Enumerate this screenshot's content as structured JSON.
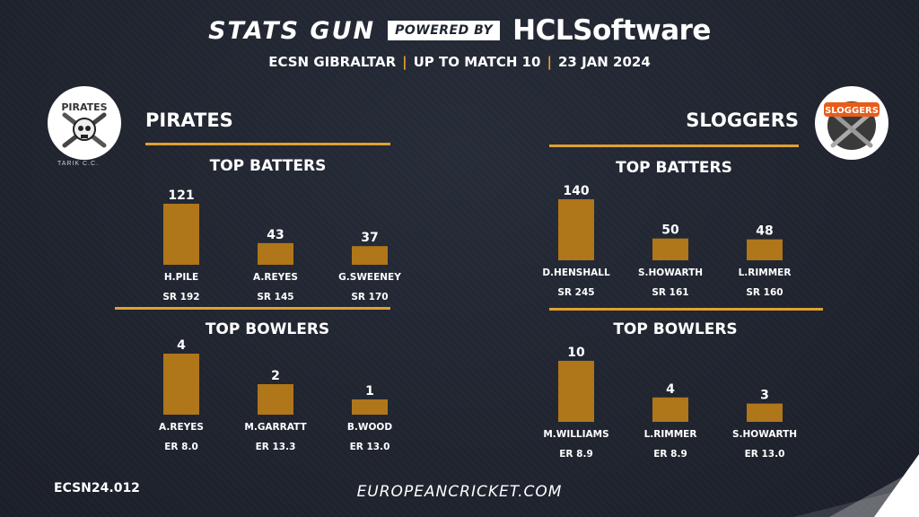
{
  "header": {
    "brand": "STATS GUN",
    "powered_by": "POWERED BY",
    "sponsor": "HCLSoftware",
    "league": "ECSN GIBRALTAR",
    "upto": "UP TO MATCH 10",
    "date": "23 JAN 2024",
    "separator": "|"
  },
  "left_team": {
    "name": "PIRATES",
    "logo_icon": "pirates-skull-logo",
    "logo_text": "PIRATES",
    "logo_caption": "TARIK C.C."
  },
  "right_team": {
    "name": "SLOGGERS",
    "logo_icon": "sloggers-logo",
    "logo_text": "SLOGGERS"
  },
  "section_titles": {
    "batters": "TOP BATTERS",
    "bowlers": "TOP BOWLERS"
  },
  "colors": {
    "bar": "#b0761a",
    "accent": "#e0a030",
    "background": "#1f2430"
  },
  "chart_data": [
    {
      "type": "bar",
      "title": "TOP BATTERS",
      "team": "PIRATES",
      "categories": [
        "H.PILE",
        "A.REYES",
        "G.SWEENEY"
      ],
      "values": [
        121,
        43,
        37
      ],
      "sub_labels": [
        "SR 192",
        "SR 145",
        "SR 170"
      ],
      "ylim": [
        0,
        121
      ]
    },
    {
      "type": "bar",
      "title": "TOP BOWLERS",
      "team": "PIRATES",
      "categories": [
        "A.REYES",
        "M.GARRATT",
        "B.WOOD"
      ],
      "values": [
        4,
        2,
        1
      ],
      "sub_labels": [
        "ER 8.0",
        "ER 13.3",
        "ER 13.0"
      ],
      "ylim": [
        0,
        4
      ]
    },
    {
      "type": "bar",
      "title": "TOP BATTERS",
      "team": "SLOGGERS",
      "categories": [
        "D.HENSHALL",
        "S.HOWARTH",
        "L.RIMMER"
      ],
      "values": [
        140,
        50,
        48
      ],
      "sub_labels": [
        "SR 245",
        "SR 161",
        "SR 160"
      ],
      "ylim": [
        0,
        140
      ]
    },
    {
      "type": "bar",
      "title": "TOP BOWLERS",
      "team": "SLOGGERS",
      "categories": [
        "M.WILLIAMS",
        "L.RIMMER",
        "S.HOWARTH"
      ],
      "values": [
        10,
        4,
        3
      ],
      "sub_labels": [
        "ER 8.9",
        "ER 8.9",
        "ER 13.0"
      ],
      "ylim": [
        0,
        10
      ]
    }
  ],
  "footer": {
    "code": "ECSN24.012",
    "url": "EUROPEANCRICKET.COM"
  }
}
